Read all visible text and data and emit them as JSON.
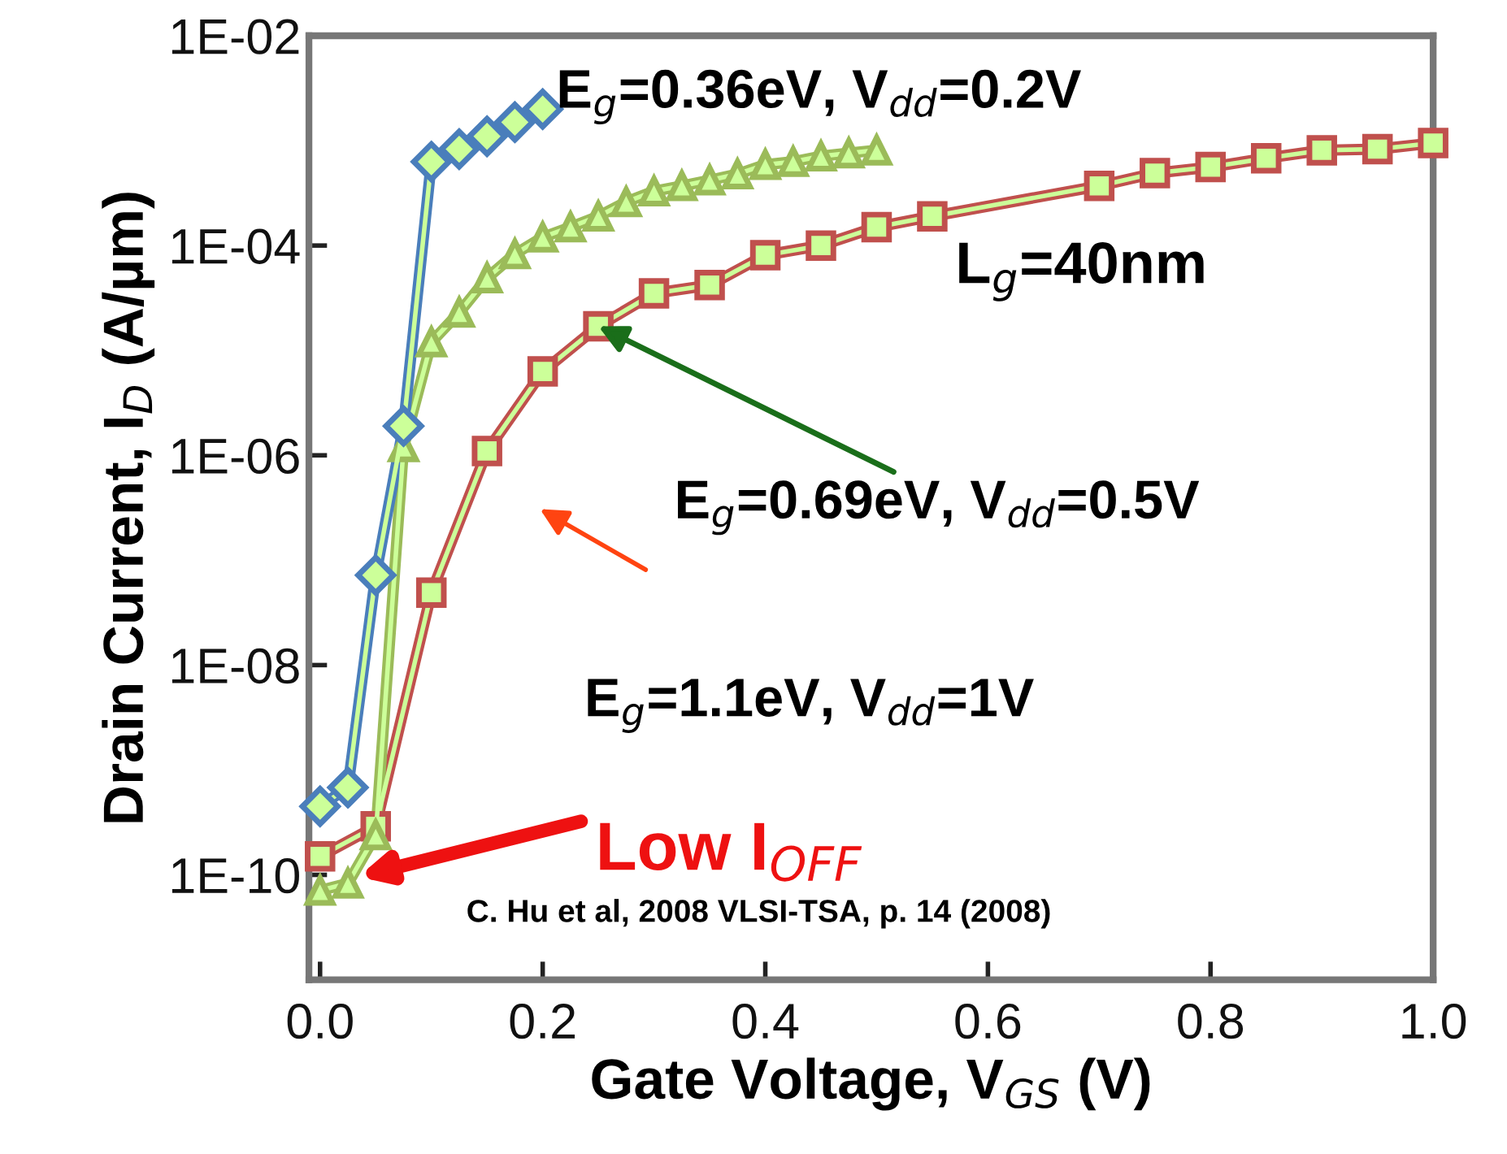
{
  "chart_data": {
    "type": "line",
    "xlabel": "Gate Voltage, V$_{GS}$ (V)",
    "ylabel": "Drain Current, I$_{D}$ (A/µm)",
    "log": "y",
    "xlim": [
      -0.01,
      1.0
    ],
    "xticks": [
      {
        "value": 0.0,
        "label": "0.0"
      },
      {
        "value": 0.2,
        "label": "0.2"
      },
      {
        "value": 0.4,
        "label": "0.4"
      },
      {
        "value": 0.6,
        "label": "0.6"
      },
      {
        "value": 0.8,
        "label": "0.8"
      },
      {
        "value": 1.0,
        "label": "1.0"
      }
    ],
    "ylim": [
      1e-11,
      0.01
    ],
    "yticks": [
      {
        "value": 1e-10,
        "label": "1E-10"
      },
      {
        "value": 1e-08,
        "label": "1E-08"
      },
      {
        "value": 1e-06,
        "label": "1E-06"
      },
      {
        "value": 0.0001,
        "label": "1E-04"
      },
      {
        "value": 0.01,
        "label": "1E-02"
      }
    ],
    "grid": false,
    "legend": false,
    "series": [
      {
        "color": "#4a7ebb",
        "marker": "diamond",
        "x": [
          0,
          0.025,
          0.05,
          0.075,
          0.1,
          0.125,
          0.15,
          0.175,
          0.2
        ],
        "values": [
          4.5e-10,
          6.8e-10,
          7.2e-08,
          1.9e-06,
          0.00063,
          0.00083,
          0.0011,
          0.0015,
          0.002
        ]
      },
      {
        "color": "#9bbb59",
        "marker": "triangle",
        "x": [
          0,
          0.025,
          0.05,
          0.075,
          0.1,
          0.125,
          0.15,
          0.175,
          0.2,
          0.225,
          0.25,
          0.275,
          0.3,
          0.325,
          0.35,
          0.375,
          0.4,
          0.425,
          0.45,
          0.475,
          0.5
        ],
        "values": [
          7.1e-11,
          8.3e-11,
          2.4e-10,
          1.2e-06,
          1.2e-05,
          2.3e-05,
          4.9e-05,
          8.3e-05,
          0.00012,
          0.00015,
          0.00019,
          0.00026,
          0.00033,
          0.00037,
          0.00042,
          0.00048,
          0.00059,
          0.00063,
          0.00071,
          0.00076,
          0.00081
        ]
      },
      {
        "color": "#c0504d",
        "marker": "square",
        "x": [
          0,
          0.05,
          0.1,
          0.15,
          0.2,
          0.25,
          0.3,
          0.35,
          0.4,
          0.45,
          0.5,
          0.55,
          0.7,
          0.75,
          0.8,
          0.85,
          0.9,
          0.95,
          1.0
        ],
        "values": [
          1.5e-10,
          2.9e-10,
          4.9e-08,
          1.1e-06,
          6.3e-06,
          1.7e-05,
          3.5e-05,
          4.2e-05,
          8.1e-05,
          0.0001,
          0.00015,
          0.00019,
          0.00037,
          0.00049,
          0.00056,
          0.00068,
          0.00081,
          0.00083,
          0.00095
        ]
      }
    ],
    "annotations": [
      "E$_{g}$=0.36eV, V$_{dd}$=0.2V",
      "L$_{g}$=40nm",
      {
        "text": "E$_{g}$=0.69eV, V$_{dd}$=0.5V",
        "x": 0.25,
        "y": 1.7e-05
      },
      "E$_{g}$=1.1eV, V$_{dd}$=1V",
      "Low I$_{OFF}$",
      "C. Hu et al, 2008 VLSI-TSA, p. 14 (2008)"
    ]
  }
}
